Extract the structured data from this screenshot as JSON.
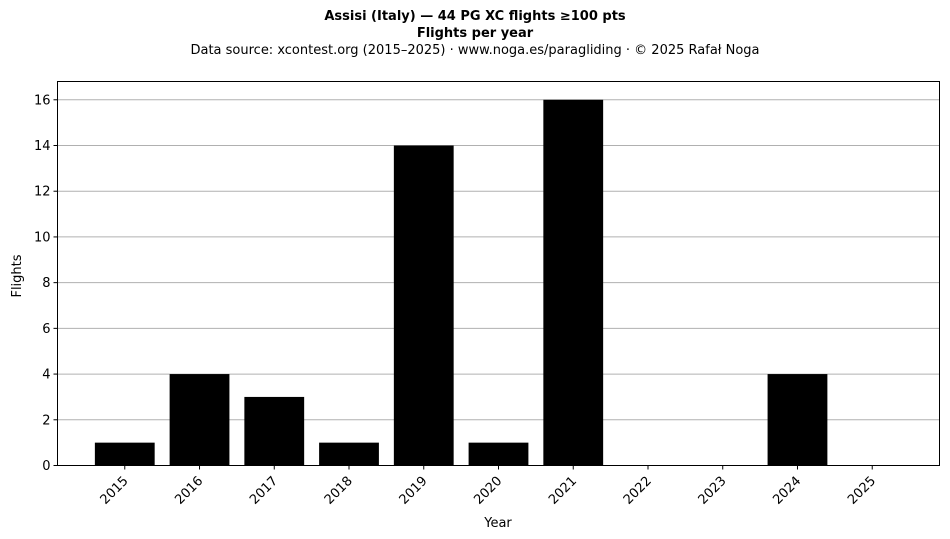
{
  "chart_data": {
    "type": "bar",
    "title": "Assisi (Italy)  —  44 PG XC flights ≥100 pts",
    "subtitle": "Flights per year",
    "caption": "Data source: xcontest.org (2015–2025)  ·  www.noga.es/paragliding  ·  © 2025 Rafał Noga",
    "xlabel": "Year",
    "ylabel": "Flights",
    "categories": [
      "2015",
      "2016",
      "2017",
      "2018",
      "2019",
      "2020",
      "2021",
      "2022",
      "2023",
      "2024",
      "2025"
    ],
    "values": [
      1,
      4,
      3,
      1,
      14,
      1,
      16,
      0,
      0,
      4,
      0
    ],
    "ylim": [
      0,
      16.8
    ],
    "yticks": [
      "0",
      "2",
      "4",
      "6",
      "8",
      "10",
      "12",
      "14",
      "16"
    ],
    "grid": "horizontal",
    "bar_color": "#000000",
    "grid_color": "#b0b0b0"
  }
}
